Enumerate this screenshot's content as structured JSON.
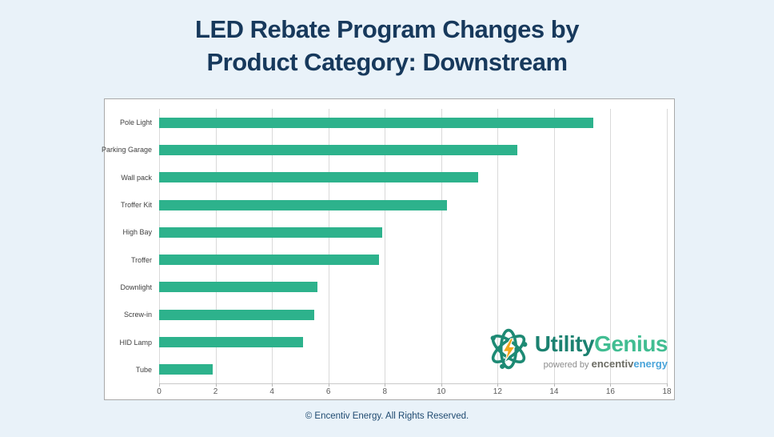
{
  "page": {
    "background_color": "#e9f2f9",
    "panel_background": "#ffffff"
  },
  "title": {
    "line1": "LED Rebate Program Changes by",
    "line2": "Product Category: Downstream",
    "color": "#17395c"
  },
  "chart_data": {
    "type": "bar",
    "orientation": "horizontal",
    "title": "LED Rebate Program Changes by Product Category: Downstream",
    "categories": [
      "Pole Light",
      "Parking Garage",
      "Wall pack",
      "Troffer Kit",
      "High Bay",
      "Troffer",
      "Downlight",
      "Screw-in",
      "HID Lamp",
      "Tube"
    ],
    "values": [
      15.4,
      12.7,
      11.3,
      10.2,
      7.9,
      7.8,
      5.6,
      5.5,
      5.1,
      1.9
    ],
    "xlabel": "",
    "ylabel": "",
    "xlim": [
      0,
      18
    ],
    "x_ticks": [
      0,
      2,
      4,
      6,
      8,
      10,
      12,
      14,
      16,
      18
    ],
    "grid": true,
    "legend": false,
    "bar_color": "#2db28c",
    "gridline_color": "#d9d9d9"
  },
  "logo": {
    "icon": "atom-icon",
    "brand_primary": "Utility",
    "brand_secondary": "Genius",
    "tagline_prefix": "powered by ",
    "tagline_brand": "encentiv",
    "tagline_suffix": "energy",
    "colors": {
      "brand_primary": "#1b8170",
      "brand_secondary": "#41bd92",
      "tagline_prefix": "#8c8c8c",
      "tagline_brand": "#6c6c64",
      "tagline_suffix": "#4aa4da",
      "atom_ring": "#1d8a74",
      "bolt": "#f2a71b"
    }
  },
  "footer": {
    "text": "© Encentiv Energy. All Rights Reserved."
  }
}
